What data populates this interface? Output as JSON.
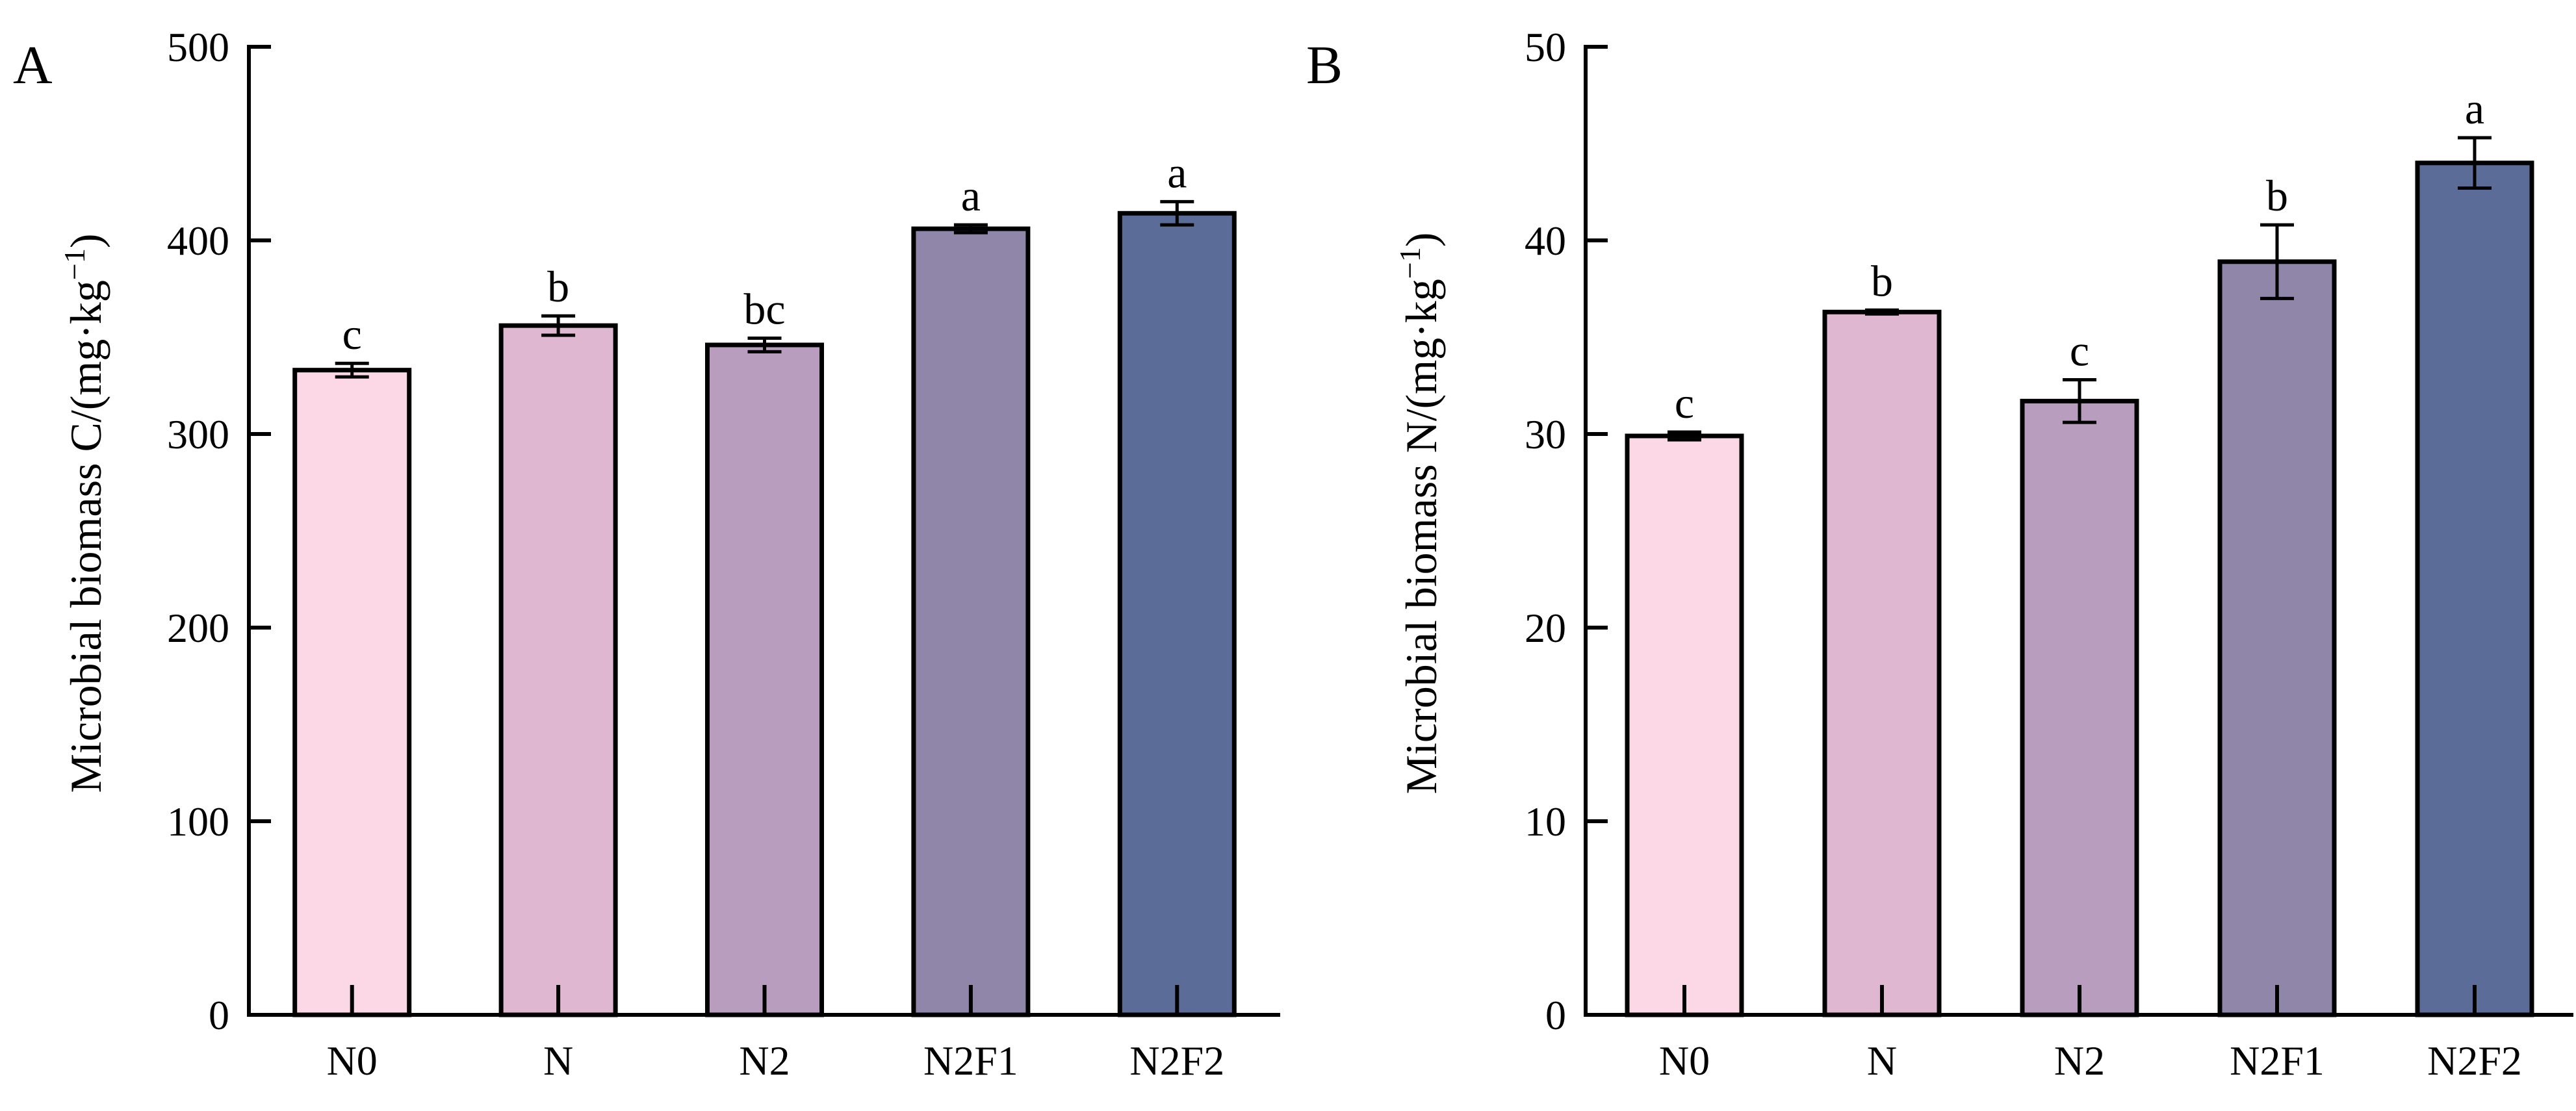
{
  "chart_data": [
    {
      "type": "bar",
      "panel": "A",
      "categories": [
        "N0",
        "N",
        "N2",
        "N2F1",
        "N2F2"
      ],
      "values": [
        333,
        356,
        346,
        406,
        414
      ],
      "errors": [
        3.5,
        5,
        3.5,
        2,
        6
      ],
      "significance": [
        "c",
        "b",
        "bc",
        "a",
        "a"
      ],
      "colors": [
        "#fcd7e5",
        "#e0b7d1",
        "#b89dbf",
        "#8f86aa",
        "#5a6c97"
      ],
      "ylabel": "Microbial biomass C/(mg·kg",
      "ylabel_sup": "−1",
      "ylabel_end": ")",
      "ylim": [
        0,
        500
      ],
      "yticks": [
        0,
        100,
        200,
        300,
        400,
        500
      ],
      "ytick_labels": [
        "0",
        "100",
        "200",
        "300",
        "400",
        "500"
      ]
    },
    {
      "type": "bar",
      "panel": "B",
      "categories": [
        "N0",
        "N",
        "N2",
        "N2F1",
        "N2F2"
      ],
      "values": [
        29.9,
        36.3,
        31.7,
        38.9,
        44.0
      ],
      "errors": [
        0.2,
        0.1,
        1.1,
        1.9,
        1.3
      ],
      "significance": [
        "c",
        "b",
        "c",
        "b",
        "a"
      ],
      "colors": [
        "#fcd7e5",
        "#e0b7d1",
        "#b89dbf",
        "#8f86aa",
        "#5a6c97"
      ],
      "ylabel": "Microbial biomass N/(mg·kg",
      "ylabel_sup": "−1",
      "ylabel_end": ")",
      "ylim": [
        0,
        50
      ],
      "yticks": [
        0,
        10,
        20,
        30,
        40,
        50
      ],
      "ytick_labels": [
        "0",
        "10",
        "20",
        "30",
        "40",
        "50"
      ]
    }
  ]
}
